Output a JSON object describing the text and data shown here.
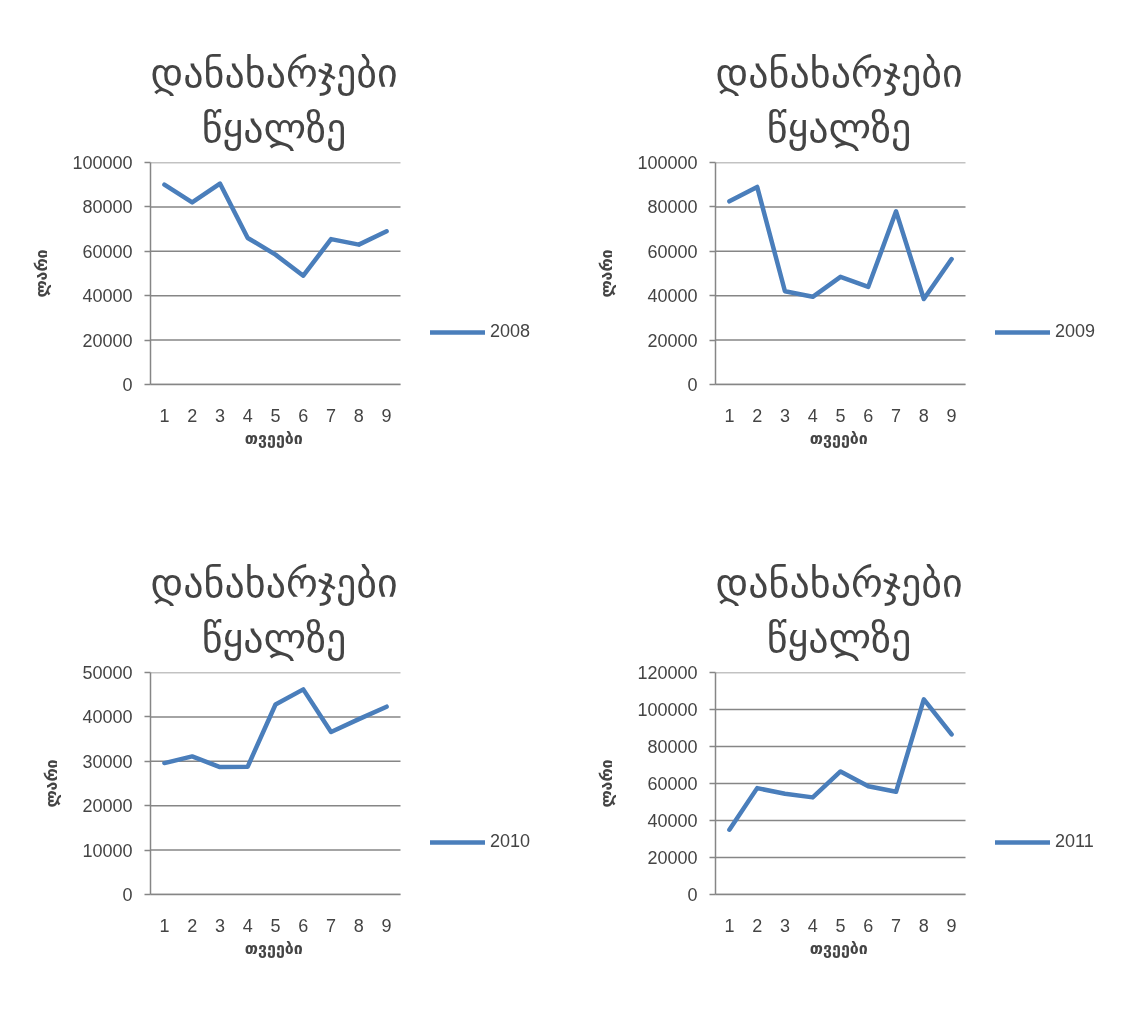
{
  "chart_data": [
    {
      "type": "line",
      "title": "დანახარჯები წყალზე",
      "xlabel": "თვეები",
      "ylabel": "ლარი",
      "categories": [
        "1",
        "2",
        "3",
        "4",
        "5",
        "6",
        "7",
        "8",
        "9"
      ],
      "series": [
        {
          "name": "2008",
          "color": "#4a7ebb",
          "values": [
            90000,
            82000,
            90500,
            66000,
            58500,
            49000,
            65500,
            63000,
            69000
          ]
        }
      ],
      "ylim": [
        0,
        100000
      ],
      "yticks": [
        0,
        20000,
        40000,
        60000,
        80000,
        100000
      ],
      "grid": "y",
      "legend": "right"
    },
    {
      "type": "line",
      "title": "დანახარჯები წყალზე",
      "xlabel": "თვეები",
      "ylabel": "ლარი",
      "categories": [
        "1",
        "2",
        "3",
        "4",
        "5",
        "6",
        "7",
        "8",
        "9"
      ],
      "series": [
        {
          "name": "2009",
          "color": "#4a7ebb",
          "values": [
            82500,
            89000,
            42000,
            39500,
            48500,
            44000,
            78000,
            38500,
            56500
          ]
        }
      ],
      "ylim": [
        0,
        100000
      ],
      "yticks": [
        0,
        20000,
        40000,
        60000,
        80000,
        100000
      ],
      "grid": "y",
      "legend": "right"
    },
    {
      "type": "line",
      "title": "დანახარჯები წყალზე",
      "xlabel": "თვეები",
      "ylabel": "ლარი",
      "categories": [
        "1",
        "2",
        "3",
        "4",
        "5",
        "6",
        "7",
        "8",
        "9"
      ],
      "series": [
        {
          "name": "2010",
          "color": "#4a7ebb",
          "values": [
            29600,
            31100,
            28700,
            28800,
            42800,
            46200,
            36600,
            39500,
            42300
          ]
        }
      ],
      "ylim": [
        0,
        50000
      ],
      "yticks": [
        0,
        10000,
        20000,
        30000,
        40000,
        50000
      ],
      "grid": "y",
      "legend": "right"
    },
    {
      "type": "line",
      "title": "დანახარჯები წყალზე",
      "xlabel": "თვეები",
      "ylabel": "ლარი",
      "categories": [
        "1",
        "2",
        "3",
        "4",
        "5",
        "6",
        "7",
        "8",
        "9"
      ],
      "series": [
        {
          "name": "2011",
          "color": "#4a7ebb",
          "values": [
            35000,
            57500,
            54500,
            52500,
            66500,
            58500,
            55500,
            105500,
            86500
          ]
        }
      ],
      "ylim": [
        0,
        120000
      ],
      "yticks": [
        0,
        20000,
        40000,
        60000,
        80000,
        100000,
        120000
      ],
      "grid": "y",
      "legend": "right"
    }
  ]
}
